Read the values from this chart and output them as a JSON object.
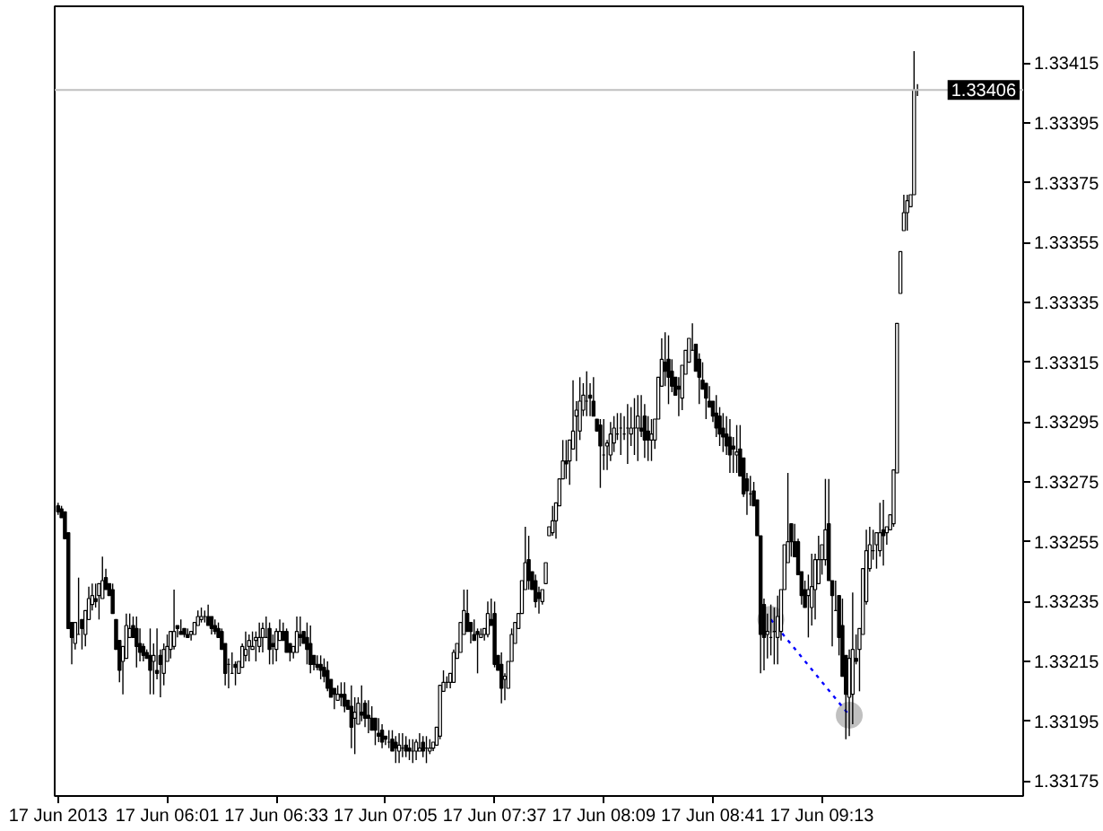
{
  "chart_data": {
    "type": "candlestick",
    "color": "#000000",
    "x": [
      "2013-06-17T05:29",
      "2013-06-17T05:30",
      "2013-06-17T05:31",
      "2013-06-17T05:32",
      "2013-06-17T05:33",
      "2013-06-17T05:34",
      "2013-06-17T05:35",
      "2013-06-17T05:36",
      "2013-06-17T05:37",
      "2013-06-17T05:38",
      "2013-06-17T05:39",
      "2013-06-17T05:40",
      "2013-06-17T05:41",
      "2013-06-17T05:42",
      "2013-06-17T05:43",
      "2013-06-17T05:44",
      "2013-06-17T05:45",
      "2013-06-17T05:46",
      "2013-06-17T05:47",
      "2013-06-17T05:48",
      "2013-06-17T05:49",
      "2013-06-17T05:50",
      "2013-06-17T05:51",
      "2013-06-17T05:52",
      "2013-06-17T05:53",
      "2013-06-17T05:54",
      "2013-06-17T05:55",
      "2013-06-17T05:56",
      "2013-06-17T05:57",
      "2013-06-17T05:58",
      "2013-06-17T05:59",
      "2013-06-17T06:00",
      "2013-06-17T06:01",
      "2013-06-17T06:02",
      "2013-06-17T06:03",
      "2013-06-17T06:04",
      "2013-06-17T06:05",
      "2013-06-17T06:06",
      "2013-06-17T06:07",
      "2013-06-17T06:08",
      "2013-06-17T06:09",
      "2013-06-17T06:10",
      "2013-06-17T06:11",
      "2013-06-17T06:12",
      "2013-06-17T06:13",
      "2013-06-17T06:14",
      "2013-06-17T06:15",
      "2013-06-17T06:16",
      "2013-06-17T06:17",
      "2013-06-17T06:18",
      "2013-06-17T06:19",
      "2013-06-17T06:20",
      "2013-06-17T06:21",
      "2013-06-17T06:22",
      "2013-06-17T06:23",
      "2013-06-17T06:24",
      "2013-06-17T06:25",
      "2013-06-17T06:26",
      "2013-06-17T06:27",
      "2013-06-17T06:28",
      "2013-06-17T06:29",
      "2013-06-17T06:30",
      "2013-06-17T06:31",
      "2013-06-17T06:32",
      "2013-06-17T06:33",
      "2013-06-17T06:34",
      "2013-06-17T06:35",
      "2013-06-17T06:36",
      "2013-06-17T06:37",
      "2013-06-17T06:38",
      "2013-06-17T06:39",
      "2013-06-17T06:40",
      "2013-06-17T06:41",
      "2013-06-17T06:42",
      "2013-06-17T06:43",
      "2013-06-17T06:44",
      "2013-06-17T06:45",
      "2013-06-17T06:46",
      "2013-06-17T06:47",
      "2013-06-17T06:48",
      "2013-06-17T06:49",
      "2013-06-17T06:50",
      "2013-06-17T06:51",
      "2013-06-17T06:52",
      "2013-06-17T06:53",
      "2013-06-17T06:54",
      "2013-06-17T06:55",
      "2013-06-17T06:56",
      "2013-06-17T06:57",
      "2013-06-17T06:58",
      "2013-06-17T06:59",
      "2013-06-17T07:00",
      "2013-06-17T07:01",
      "2013-06-17T07:02",
      "2013-06-17T07:03",
      "2013-06-17T07:04",
      "2013-06-17T07:05",
      "2013-06-17T07:06",
      "2013-06-17T07:07",
      "2013-06-17T07:08",
      "2013-06-17T07:09",
      "2013-06-17T07:10",
      "2013-06-17T07:11",
      "2013-06-17T07:12",
      "2013-06-17T07:13",
      "2013-06-17T07:14",
      "2013-06-17T07:15",
      "2013-06-17T07:16",
      "2013-06-17T07:17",
      "2013-06-17T07:18",
      "2013-06-17T07:19",
      "2013-06-17T07:20",
      "2013-06-17T07:21",
      "2013-06-17T07:22",
      "2013-06-17T07:23",
      "2013-06-17T07:24",
      "2013-06-17T07:25",
      "2013-06-17T07:26",
      "2013-06-17T07:27",
      "2013-06-17T07:28",
      "2013-06-17T07:29",
      "2013-06-17T07:30",
      "2013-06-17T07:31",
      "2013-06-17T07:32",
      "2013-06-17T07:33",
      "2013-06-17T07:34",
      "2013-06-17T07:35",
      "2013-06-17T07:36",
      "2013-06-17T07:37",
      "2013-06-17T07:38",
      "2013-06-17T07:39",
      "2013-06-17T07:40",
      "2013-06-17T07:41",
      "2013-06-17T07:42",
      "2013-06-17T07:43",
      "2013-06-17T07:44",
      "2013-06-17T07:45",
      "2013-06-17T07:46",
      "2013-06-17T07:47",
      "2013-06-17T07:48",
      "2013-06-17T07:49",
      "2013-06-17T07:50",
      "2013-06-17T07:51",
      "2013-06-17T07:52",
      "2013-06-17T07:53",
      "2013-06-17T07:54",
      "2013-06-17T07:55",
      "2013-06-17T07:56",
      "2013-06-17T07:57",
      "2013-06-17T07:58",
      "2013-06-17T07:59",
      "2013-06-17T08:00",
      "2013-06-17T08:01",
      "2013-06-17T08:02",
      "2013-06-17T08:03",
      "2013-06-17T08:04",
      "2013-06-17T08:05",
      "2013-06-17T08:06",
      "2013-06-17T08:07",
      "2013-06-17T08:08",
      "2013-06-17T08:09",
      "2013-06-17T08:10",
      "2013-06-17T08:11",
      "2013-06-17T08:12",
      "2013-06-17T08:13",
      "2013-06-17T08:14",
      "2013-06-17T08:15",
      "2013-06-17T08:16",
      "2013-06-17T08:17",
      "2013-06-17T08:18",
      "2013-06-17T08:19",
      "2013-06-17T08:20",
      "2013-06-17T08:21",
      "2013-06-17T08:22",
      "2013-06-17T08:23",
      "2013-06-17T08:24",
      "2013-06-17T08:25",
      "2013-06-17T08:26",
      "2013-06-17T08:27",
      "2013-06-17T08:28",
      "2013-06-17T08:29",
      "2013-06-17T08:30",
      "2013-06-17T08:31",
      "2013-06-17T08:32",
      "2013-06-17T08:33",
      "2013-06-17T08:34",
      "2013-06-17T08:35",
      "2013-06-17T08:36",
      "2013-06-17T08:37",
      "2013-06-17T08:38",
      "2013-06-17T08:39",
      "2013-06-17T08:40",
      "2013-06-17T08:41",
      "2013-06-17T08:42",
      "2013-06-17T08:43",
      "2013-06-17T08:44",
      "2013-06-17T08:45",
      "2013-06-17T08:46",
      "2013-06-17T08:47",
      "2013-06-17T08:48",
      "2013-06-17T08:49",
      "2013-06-17T08:50",
      "2013-06-17T08:51",
      "2013-06-17T08:52",
      "2013-06-17T08:53",
      "2013-06-17T08:54",
      "2013-06-17T08:55",
      "2013-06-17T08:56",
      "2013-06-17T08:57",
      "2013-06-17T08:58",
      "2013-06-17T08:59",
      "2013-06-17T09:00",
      "2013-06-17T09:01",
      "2013-06-17T09:02",
      "2013-06-17T09:03",
      "2013-06-17T09:04",
      "2013-06-17T09:05",
      "2013-06-17T09:06",
      "2013-06-17T09:07",
      "2013-06-17T09:08",
      "2013-06-17T09:09",
      "2013-06-17T09:10",
      "2013-06-17T09:11",
      "2013-06-17T09:12",
      "2013-06-17T09:13",
      "2013-06-17T09:14",
      "2013-06-17T09:15",
      "2013-06-17T09:16",
      "2013-06-17T09:17",
      "2013-06-17T09:18",
      "2013-06-17T09:19",
      "2013-06-17T09:20",
      "2013-06-17T09:21",
      "2013-06-17T09:22",
      "2013-06-17T09:23",
      "2013-06-17T09:24",
      "2013-06-17T09:25",
      "2013-06-17T09:26",
      "2013-06-17T09:27",
      "2013-06-17T09:28",
      "2013-06-17T09:29",
      "2013-06-17T09:30",
      "2013-06-17T09:31",
      "2013-06-17T09:32",
      "2013-06-17T09:33",
      "2013-06-17T09:34",
      "2013-06-17T09:35",
      "2013-06-17T09:36",
      "2013-06-17T09:37",
      "2013-06-17T09:38",
      "2013-06-17T09:39",
      "2013-06-17T09:40",
      "2013-06-17T09:41"
    ],
    "ohlc": [
      [
        1.33267,
        1.33268,
        1.33264,
        1.33265
      ],
      [
        1.33266,
        1.33267,
        1.33263,
        1.33263
      ],
      [
        1.33265,
        1.33265,
        1.33256,
        1.33256
      ],
      [
        1.33258,
        1.33258,
        1.33226,
        1.33226
      ],
      [
        1.33228,
        1.33228,
        1.33214,
        1.33223
      ],
      [
        1.33221,
        1.33228,
        1.33219,
        1.33228
      ],
      [
        1.33224,
        1.33243,
        1.33224,
        1.33224
      ],
      [
        1.33229,
        1.33229,
        1.33219,
        1.33226
      ],
      [
        1.33224,
        1.33232,
        1.3322,
        1.33232
      ],
      [
        1.33229,
        1.3324,
        1.33229,
        1.33236
      ],
      [
        1.33234,
        1.33241,
        1.33232,
        1.33237
      ],
      [
        1.33236,
        1.33241,
        1.33233,
        1.33235
      ],
      [
        1.33237,
        1.33241,
        1.33229,
        1.33241
      ],
      [
        1.33236,
        1.3325,
        1.33236,
        1.33242
      ],
      [
        1.33243,
        1.33246,
        1.33239,
        1.33239
      ],
      [
        1.33241,
        1.33241,
        1.33237,
        1.33237
      ],
      [
        1.33239,
        1.33241,
        1.33231,
        1.33231
      ],
      [
        1.33229,
        1.33229,
        1.33219,
        1.33219
      ],
      [
        1.33222,
        1.33222,
        1.33208,
        1.33212
      ],
      [
        1.33215,
        1.3322,
        1.33204,
        1.3322
      ],
      [
        1.33216,
        1.33231,
        1.33216,
        1.33227
      ],
      [
        1.33223,
        1.33231,
        1.33223,
        1.33226
      ],
      [
        1.33227,
        1.3323,
        1.33223,
        1.33223
      ],
      [
        1.33226,
        1.3323,
        1.33213,
        1.3322
      ],
      [
        1.33221,
        1.33226,
        1.33215,
        1.33218
      ],
      [
        1.3322,
        1.33221,
        1.33215,
        1.33217
      ],
      [
        1.33218,
        1.33219,
        1.33216,
        1.33216
      ],
      [
        1.33217,
        1.33226,
        1.33204,
        1.33212
      ],
      [
        1.33215,
        1.33221,
        1.33204,
        1.33217
      ],
      [
        1.33212,
        1.33226,
        1.33209,
        1.33211
      ],
      [
        1.33217,
        1.33219,
        1.33203,
        1.33214
      ],
      [
        1.33211,
        1.33221,
        1.33207,
        1.33219
      ],
      [
        1.33215,
        1.33224,
        1.33215,
        1.3322
      ],
      [
        1.33219,
        1.33225,
        1.33216,
        1.33225
      ],
      [
        1.3322,
        1.33239,
        1.33219,
        1.33225
      ],
      [
        1.33227,
        1.33227,
        1.33223,
        1.33226
      ],
      [
        1.33225,
        1.33229,
        1.33224,
        1.33224
      ],
      [
        1.33226,
        1.33226,
        1.33223,
        1.33224
      ],
      [
        1.33224,
        1.33226,
        1.33223,
        1.33223
      ],
      [
        1.33224,
        1.33225,
        1.33222,
        1.33225
      ],
      [
        1.33224,
        1.33228,
        1.33224,
        1.33228
      ],
      [
        1.33227,
        1.33232,
        1.33227,
        1.3323
      ],
      [
        1.33229,
        1.33233,
        1.33228,
        1.3323
      ],
      [
        1.3323,
        1.33232,
        1.33228,
        1.3323
      ],
      [
        1.3323,
        1.33234,
        1.33227,
        1.33227
      ],
      [
        1.3323,
        1.3323,
        1.33224,
        1.33226
      ],
      [
        1.33227,
        1.33229,
        1.33224,
        1.33225
      ],
      [
        1.33226,
        1.33228,
        1.33223,
        1.33223
      ],
      [
        1.33225,
        1.33226,
        1.33219,
        1.33219
      ],
      [
        1.33221,
        1.33221,
        1.33207,
        1.33211
      ],
      [
        1.33214,
        1.33216,
        1.33206,
        1.33214
      ],
      [
        1.33211,
        1.33218,
        1.33211,
        1.33211
      ],
      [
        1.33214,
        1.33215,
        1.33207,
        1.33213
      ],
      [
        1.33211,
        1.33215,
        1.33211,
        1.33215
      ],
      [
        1.33213,
        1.33221,
        1.33213,
        1.3322
      ],
      [
        1.33217,
        1.33225,
        1.33215,
        1.33219
      ],
      [
        1.3322,
        1.33224,
        1.33215,
        1.33222
      ],
      [
        1.33219,
        1.33225,
        1.33219,
        1.3322
      ],
      [
        1.33222,
        1.33225,
        1.33215,
        1.33223
      ],
      [
        1.3322,
        1.33228,
        1.33218,
        1.33223
      ],
      [
        1.33223,
        1.33228,
        1.33218,
        1.33226
      ],
      [
        1.33223,
        1.3323,
        1.33223,
        1.33223
      ],
      [
        1.33226,
        1.33228,
        1.33214,
        1.33219
      ],
      [
        1.33221,
        1.33224,
        1.33214,
        1.3322
      ],
      [
        1.33219,
        1.33226,
        1.33215,
        1.33225
      ],
      [
        1.33222,
        1.33229,
        1.33222,
        1.33225
      ],
      [
        1.33225,
        1.33228,
        1.33222,
        1.33222
      ],
      [
        1.33225,
        1.33226,
        1.33218,
        1.33218
      ],
      [
        1.33221,
        1.33221,
        1.33215,
        1.33218
      ],
      [
        1.33218,
        1.3322,
        1.33216,
        1.3322
      ],
      [
        1.33218,
        1.3323,
        1.33218,
        1.33225
      ],
      [
        1.33224,
        1.3323,
        1.3322,
        1.33223
      ],
      [
        1.33225,
        1.33225,
        1.33221,
        1.33221
      ],
      [
        1.33223,
        1.33228,
        1.33214,
        1.33219
      ],
      [
        1.33221,
        1.33227,
        1.33211,
        1.33214
      ],
      [
        1.33217,
        1.33217,
        1.33212,
        1.33214
      ],
      [
        1.33214,
        1.33217,
        1.33212,
        1.33213
      ],
      [
        1.33214,
        1.33217,
        1.33209,
        1.33212
      ],
      [
        1.33213,
        1.33216,
        1.33208,
        1.3321
      ],
      [
        1.33212,
        1.33215,
        1.33205,
        1.33206
      ],
      [
        1.33209,
        1.33209,
        1.33203,
        1.33203
      ],
      [
        1.33206,
        1.33206,
        1.33199,
        1.33204
      ],
      [
        1.33202,
        1.33207,
        1.33202,
        1.33204
      ],
      [
        1.33204,
        1.33208,
        1.332,
        1.33203
      ],
      [
        1.33204,
        1.33208,
        1.33198,
        1.332
      ],
      [
        1.33202,
        1.33202,
        1.33199,
        1.33199
      ],
      [
        1.332,
        1.33207,
        1.33186,
        1.33193
      ],
      [
        1.33196,
        1.33203,
        1.33184,
        1.33198
      ],
      [
        1.33194,
        1.33203,
        1.33194,
        1.33201
      ],
      [
        1.33198,
        1.33207,
        1.33195,
        1.33197
      ],
      [
        1.33201,
        1.33202,
        1.33193,
        1.33196
      ],
      [
        1.33197,
        1.33202,
        1.33191,
        1.33196
      ],
      [
        1.33196,
        1.332,
        1.33192,
        1.33192
      ],
      [
        1.33196,
        1.33196,
        1.33187,
        1.33192
      ],
      [
        1.33191,
        1.33196,
        1.33188,
        1.3319
      ],
      [
        1.33192,
        1.33194,
        1.33186,
        1.33188
      ],
      [
        1.3319,
        1.3319,
        1.33187,
        1.33189
      ],
      [
        1.33188,
        1.33192,
        1.33186,
        1.33188
      ],
      [
        1.33189,
        1.33192,
        1.33185,
        1.33185
      ],
      [
        1.33188,
        1.3319,
        1.33181,
        1.33186
      ],
      [
        1.33185,
        1.33191,
        1.33181,
        1.33187
      ],
      [
        1.33186,
        1.33191,
        1.33183,
        1.33186
      ],
      [
        1.33187,
        1.3319,
        1.33183,
        1.33185
      ],
      [
        1.33186,
        1.33189,
        1.33182,
        1.33185
      ],
      [
        1.33185,
        1.33189,
        1.33181,
        1.33185
      ],
      [
        1.33185,
        1.33189,
        1.33182,
        1.33188
      ],
      [
        1.33185,
        1.33191,
        1.33185,
        1.33186
      ],
      [
        1.33188,
        1.3319,
        1.33183,
        1.33185
      ],
      [
        1.33186,
        1.3319,
        1.33181,
        1.33186
      ],
      [
        1.33185,
        1.33189,
        1.33184,
        1.33186
      ],
      [
        1.33186,
        1.33188,
        1.33185,
        1.33188
      ],
      [
        1.33187,
        1.33193,
        1.33187,
        1.33193
      ],
      [
        1.3319,
        1.33207,
        1.33189,
        1.33207
      ],
      [
        1.33205,
        1.33212,
        1.33205,
        1.33208
      ],
      [
        1.33208,
        1.3321,
        1.33206,
        1.33208
      ],
      [
        1.33208,
        1.33211,
        1.33206,
        1.33211
      ],
      [
        1.33208,
        1.33219,
        1.33208,
        1.33218
      ],
      [
        1.33216,
        1.33221,
        1.33216,
        1.33221
      ],
      [
        1.33218,
        1.33228,
        1.33218,
        1.33228
      ],
      [
        1.33224,
        1.33239,
        1.33224,
        1.33232
      ],
      [
        1.33231,
        1.33239,
        1.33225,
        1.33225
      ],
      [
        1.33228,
        1.33228,
        1.33221,
        1.33225
      ],
      [
        1.33224,
        1.33229,
        1.33222,
        1.33222
      ],
      [
        1.33225,
        1.33226,
        1.33211,
        1.33224
      ],
      [
        1.33223,
        1.33226,
        1.33223,
        1.33224
      ],
      [
        1.33224,
        1.33226,
        1.33222,
        1.33226
      ],
      [
        1.33224,
        1.33235,
        1.33223,
        1.33231
      ],
      [
        1.33229,
        1.33236,
        1.33227,
        1.33227
      ],
      [
        1.33231,
        1.33235,
        1.33213,
        1.33214
      ],
      [
        1.33217,
        1.33217,
        1.33212,
        1.33212
      ],
      [
        1.33214,
        1.33218,
        1.33201,
        1.33206
      ],
      [
        1.33209,
        1.33211,
        1.33202,
        1.3321
      ],
      [
        1.33206,
        1.33215,
        1.33206,
        1.33215
      ],
      [
        1.33215,
        1.33226,
        1.33215,
        1.33224
      ],
      [
        1.33221,
        1.33228,
        1.33221,
        1.33228
      ],
      [
        1.33226,
        1.33231,
        1.33226,
        1.33231
      ],
      [
        1.33231,
        1.33242,
        1.33231,
        1.33242
      ],
      [
        1.33239,
        1.3326,
        1.33239,
        1.33248
      ],
      [
        1.33249,
        1.33257,
        1.33239,
        1.33242
      ],
      [
        1.33245,
        1.33245,
        1.33239,
        1.33239
      ],
      [
        1.33242,
        1.33244,
        1.33233,
        1.33235
      ],
      [
        1.33238,
        1.3324,
        1.33231,
        1.33236
      ],
      [
        1.33235,
        1.33239,
        1.33234,
        1.33239
      ],
      [
        1.33241,
        1.33248,
        1.33241,
        1.33248
      ],
      [
        1.33257,
        1.3326,
        1.33257,
        1.3326
      ],
      [
        1.33258,
        1.33267,
        1.33257,
        1.33262
      ],
      [
        1.33262,
        1.33268,
        1.33256,
        1.33268
      ],
      [
        1.33267,
        1.33276,
        1.33267,
        1.33276
      ],
      [
        1.33276,
        1.33289,
        1.33276,
        1.33282
      ],
      [
        1.33282,
        1.33289,
        1.33276,
        1.33281
      ],
      [
        1.33282,
        1.33289,
        1.33274,
        1.33289
      ],
      [
        1.33286,
        1.33309,
        1.33286,
        1.33292
      ],
      [
        1.33297,
        1.33302,
        1.33282,
        1.33299
      ],
      [
        1.33292,
        1.3331,
        1.33289,
        1.33302
      ],
      [
        1.33299,
        1.33308,
        1.33297,
        1.33304
      ],
      [
        1.33302,
        1.33312,
        1.33297,
        1.33302
      ],
      [
        1.33304,
        1.33308,
        1.33297,
        1.33303
      ],
      [
        1.33302,
        1.3331,
        1.33297,
        1.33297
      ],
      [
        1.33296,
        1.33296,
        1.33292,
        1.33292
      ],
      [
        1.33294,
        1.33296,
        1.33273,
        1.33287
      ],
      [
        1.33284,
        1.33296,
        1.33279,
        1.33284
      ],
      [
        1.33287,
        1.33289,
        1.33279,
        1.33288
      ],
      [
        1.33284,
        1.33295,
        1.33282,
        1.33291
      ],
      [
        1.33288,
        1.33297,
        1.33285,
        1.33293
      ],
      [
        1.33291,
        1.33298,
        1.33289,
        1.33291
      ],
      [
        1.33293,
        1.33298,
        1.33284,
        1.33293
      ],
      [
        1.33291,
        1.33297,
        1.33289,
        1.33291
      ],
      [
        1.33293,
        1.33301,
        1.33281,
        1.33293
      ],
      [
        1.33291,
        1.333,
        1.33287,
        1.33293
      ],
      [
        1.33293,
        1.33303,
        1.33284,
        1.33293
      ],
      [
        1.33293,
        1.33304,
        1.33282,
        1.33297
      ],
      [
        1.33293,
        1.33304,
        1.3329,
        1.33292
      ],
      [
        1.33297,
        1.33301,
        1.33283,
        1.33289
      ],
      [
        1.33292,
        1.33297,
        1.33282,
        1.33289
      ],
      [
        1.33289,
        1.33296,
        1.33282,
        1.33291
      ],
      [
        1.33289,
        1.33296,
        1.33286,
        1.33296
      ],
      [
        1.33296,
        1.3331,
        1.33296,
        1.3331
      ],
      [
        1.33307,
        1.33323,
        1.33307,
        1.33316
      ],
      [
        1.33315,
        1.33325,
        1.33307,
        1.33312
      ],
      [
        1.33316,
        1.33324,
        1.33301,
        1.3331
      ],
      [
        1.33312,
        1.33316,
        1.33305,
        1.33307
      ],
      [
        1.3331,
        1.3331,
        1.33304,
        1.33304
      ],
      [
        1.33307,
        1.3331,
        1.33297,
        1.33306
      ],
      [
        1.33303,
        1.33314,
        1.33299,
        1.33314
      ],
      [
        1.33311,
        1.33319,
        1.33311,
        1.33319
      ],
      [
        1.33315,
        1.33323,
        1.33315,
        1.33323
      ],
      [
        1.33319,
        1.33328,
        1.33319,
        1.33319
      ],
      [
        1.33321,
        1.33321,
        1.33312,
        1.33312
      ],
      [
        1.33316,
        1.33318,
        1.33301,
        1.3331
      ],
      [
        1.33309,
        1.33315,
        1.33306,
        1.33306
      ],
      [
        1.33308,
        1.33308,
        1.33296,
        1.33303
      ],
      [
        1.33302,
        1.33307,
        1.333,
        1.333
      ],
      [
        1.33302,
        1.33302,
        1.33295,
        1.33297
      ],
      [
        1.33298,
        1.33304,
        1.3329,
        1.33293
      ],
      [
        1.33297,
        1.333,
        1.33287,
        1.33291
      ],
      [
        1.33293,
        1.33298,
        1.33285,
        1.3329
      ],
      [
        1.33291,
        1.33297,
        1.33284,
        1.33287
      ],
      [
        1.3329,
        1.33296,
        1.33278,
        1.33284
      ],
      [
        1.33287,
        1.3329,
        1.33278,
        1.33286
      ],
      [
        1.33284,
        1.33294,
        1.33278,
        1.33285
      ],
      [
        1.33286,
        1.33294,
        1.33277,
        1.33277
      ],
      [
        1.33283,
        1.33283,
        1.3327,
        1.33271
      ],
      [
        1.33276,
        1.33278,
        1.33264,
        1.33272
      ],
      [
        1.33271,
        1.33277,
        1.33267,
        1.33271
      ],
      [
        1.33272,
        1.33275,
        1.33267,
        1.33267
      ],
      [
        1.33269,
        1.33269,
        1.33257,
        1.33257
      ],
      [
        1.33257,
        1.33257,
        1.33211,
        1.33224
      ],
      [
        1.33234,
        1.33236,
        1.33212,
        1.33223
      ],
      [
        1.33224,
        1.33231,
        1.33216,
        1.33225
      ],
      [
        1.33223,
        1.33234,
        1.33217,
        1.33223
      ],
      [
        1.33225,
        1.33233,
        1.33214,
        1.33225
      ],
      [
        1.33223,
        1.33237,
        1.33214,
        1.3323
      ],
      [
        1.33225,
        1.33239,
        1.33222,
        1.33239
      ],
      [
        1.33239,
        1.33254,
        1.33239,
        1.33254
      ],
      [
        1.33248,
        1.33278,
        1.33248,
        1.33255
      ],
      [
        1.33261,
        1.33261,
        1.3325,
        1.33255
      ],
      [
        1.33255,
        1.33261,
        1.3325,
        1.3325
      ],
      [
        1.33255,
        1.33256,
        1.33244,
        1.33244
      ],
      [
        1.33245,
        1.33245,
        1.33234,
        1.33237
      ],
      [
        1.33239,
        1.33242,
        1.33233,
        1.33233
      ],
      [
        1.33237,
        1.33244,
        1.33223,
        1.33239
      ],
      [
        1.33233,
        1.33251,
        1.33227,
        1.3324
      ],
      [
        1.33239,
        1.33251,
        1.33229,
        1.33249
      ],
      [
        1.33241,
        1.33257,
        1.33241,
        1.33249
      ],
      [
        1.33249,
        1.33254,
        1.33244,
        1.33254
      ],
      [
        1.33249,
        1.33276,
        1.33247,
        1.33259
      ],
      [
        1.33261,
        1.33276,
        1.33242,
        1.33242
      ],
      [
        1.33242,
        1.33242,
        1.3322,
        1.33237
      ],
      [
        1.33232,
        1.33242,
        1.33232,
        1.33232
      ],
      [
        1.33237,
        1.33237,
        1.33217,
        1.33223
      ],
      [
        1.33227,
        1.33236,
        1.3321,
        1.3321
      ],
      [
        1.33217,
        1.33217,
        1.33189,
        1.33204
      ],
      [
        1.33203,
        1.33219,
        1.3319,
        1.33216
      ],
      [
        1.33204,
        1.33238,
        1.33194,
        1.33219
      ],
      [
        1.33216,
        1.33224,
        1.33214,
        1.33215
      ],
      [
        1.33219,
        1.33226,
        1.33205,
        1.33226
      ],
      [
        1.33224,
        1.33246,
        1.33224,
        1.33246
      ],
      [
        1.33235,
        1.33259,
        1.33234,
        1.33252
      ],
      [
        1.33246,
        1.3326,
        1.33245,
        1.33254
      ],
      [
        1.33252,
        1.33259,
        1.33249,
        1.33252
      ],
      [
        1.33254,
        1.33258,
        1.33246,
        1.33258
      ],
      [
        1.33252,
        1.33268,
        1.3325,
        1.33258
      ],
      [
        1.33259,
        1.33269,
        1.33247,
        1.33257
      ],
      [
        1.33258,
        1.3326,
        1.33254,
        1.3326
      ],
      [
        1.33259,
        1.33264,
        1.33259,
        1.33264
      ],
      [
        1.33261,
        1.33279,
        1.3326,
        1.33279
      ],
      [
        1.33278,
        1.33328,
        1.33278,
        1.33328
      ],
      [
        1.33338,
        1.33352,
        1.33338,
        1.33352
      ],
      [
        1.33359,
        1.33371,
        1.33359,
        1.33365
      ],
      [
        1.33365,
        1.33371,
        1.33359,
        1.33369
      ],
      [
        1.33367,
        1.33371,
        1.33367,
        1.33371
      ],
      [
        1.33371,
        1.33419,
        1.33371,
        1.33406
      ],
      [
        1.33406,
        1.33408,
        1.33404,
        1.33406
      ]
    ],
    "series": [
      {
        "type": "line",
        "x": [
          "2013-06-17T08:58",
          "2013-06-17T09:21"
        ],
        "values": [
          1.33229,
          1.33197
        ],
        "color": "#0000ff",
        "colors": [
          "#c0c0c0",
          "#c0c0c0"
        ],
        "line_style": "dotted",
        "marker": "circle"
      }
    ],
    "xlim": [
      "2013-06-17T05:28",
      "2013-06-17T10:12"
    ],
    "xticks": [
      {
        "value": "2013-06-17T05:29",
        "label": "17 Jun 2013"
      },
      {
        "value": "2013-06-17T06:01",
        "label": "17 Jun 06:01"
      },
      {
        "value": "2013-06-17T06:33",
        "label": "17 Jun 06:33"
      },
      {
        "value": "2013-06-17T07:05",
        "label": "17 Jun 07:05"
      },
      {
        "value": "2013-06-17T07:37",
        "label": "17 Jun 07:37"
      },
      {
        "value": "2013-06-17T08:09",
        "label": "17 Jun 08:09"
      },
      {
        "value": "2013-06-17T08:41",
        "label": "17 Jun 08:41"
      },
      {
        "value": "2013-06-17T09:13",
        "label": "17 Jun 09:13"
      }
    ],
    "ylim": [
      1.3317,
      1.33434
    ],
    "yticks": [
      1.33175,
      1.33195,
      1.33215,
      1.33235,
      1.33255,
      1.33275,
      1.33295,
      1.33315,
      1.33335,
      1.33355,
      1.33375,
      1.33395,
      1.33415
    ],
    "ref_lines": [
      {
        "axis": "y",
        "value": 1.33406,
        "label": "1.33406",
        "color": "#c0c0c0"
      }
    ]
  }
}
